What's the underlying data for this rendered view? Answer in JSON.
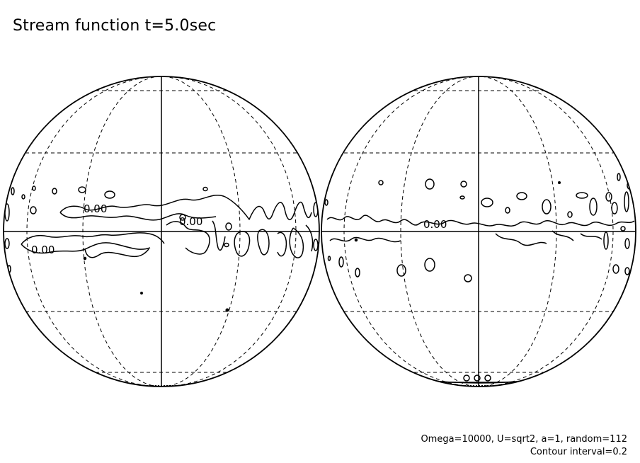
{
  "title": "Stream function t=5.0sec",
  "footer": {
    "params": "Omega=10000, U=sqrt2, a=1, random=112",
    "interval": "Contour interval=0.2"
  },
  "contour_labels": {
    "left": [
      "0.00",
      "0.00",
      "0.00"
    ],
    "right": [
      "0.00"
    ]
  },
  "colors": {
    "line": "#000000",
    "background": "#ffffff"
  }
}
